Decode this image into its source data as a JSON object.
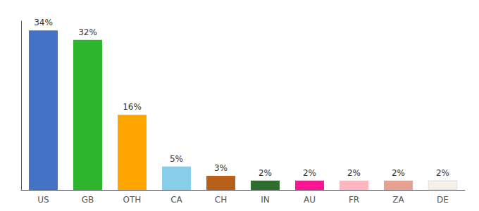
{
  "chart_data": {
    "type": "bar",
    "categories": [
      "US",
      "GB",
      "OTH",
      "CA",
      "CH",
      "IN",
      "AU",
      "FR",
      "ZA",
      "DE"
    ],
    "values": [
      34,
      32,
      16,
      5,
      3,
      2,
      2,
      2,
      2,
      2
    ],
    "value_labels": [
      "34%",
      "32%",
      "16%",
      "5%",
      "3%",
      "2%",
      "2%",
      "2%",
      "2%",
      "2%"
    ],
    "colors": [
      "#4472c4",
      "#2db52d",
      "#ffa500",
      "#87ceeb",
      "#b8601a",
      "#2d6e2d",
      "#ff1493",
      "#ffb6c1",
      "#e8a090",
      "#f5f0e8"
    ],
    "ylim": [
      0,
      36
    ],
    "grid": false,
    "data_labels": true,
    "tick_labels": "x"
  }
}
